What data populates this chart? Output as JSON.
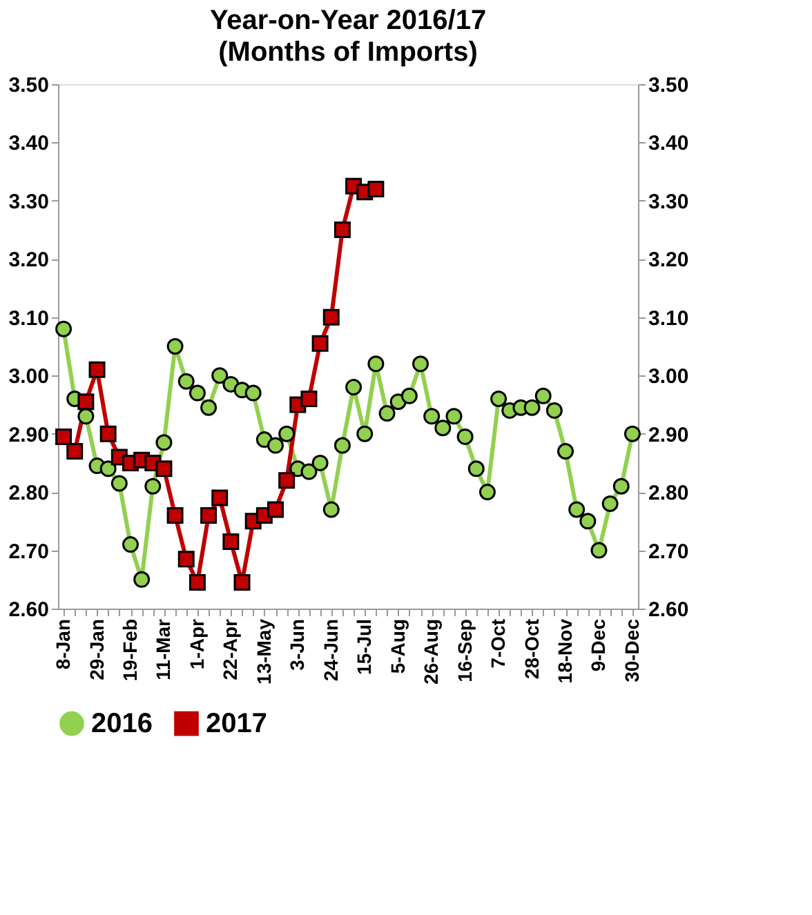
{
  "chart_data": {
    "type": "line",
    "title": "Year-on-Year 2016/17",
    "subtitle": "(Months of Imports)",
    "categories": [
      "8-Jan",
      null,
      null,
      "29-Jan",
      null,
      null,
      "19-Feb",
      null,
      null,
      "11-Mar",
      null,
      null,
      "1-Apr",
      null,
      null,
      "22-Apr",
      null,
      null,
      "13-May",
      null,
      null,
      "3-Jun",
      null,
      null,
      "24-Jun",
      null,
      null,
      "15-Jul",
      null,
      null,
      "5-Aug",
      null,
      null,
      "26-Aug",
      null,
      null,
      "16-Sep",
      null,
      null,
      "7-Oct",
      null,
      null,
      "28-Oct",
      null,
      null,
      "18-Nov",
      null,
      null,
      "9-Dec",
      null,
      null,
      "30-Dec"
    ],
    "series": [
      {
        "name": "2016",
        "color": "#92d050",
        "marker": "circle",
        "values": [
          3.08,
          2.96,
          2.93,
          2.845,
          2.84,
          2.815,
          2.71,
          2.65,
          2.81,
          2.885,
          3.05,
          2.99,
          2.97,
          2.945,
          3.0,
          2.985,
          2.975,
          2.97,
          2.89,
          2.88,
          2.9,
          2.84,
          2.835,
          2.85,
          2.77,
          2.88,
          2.98,
          2.9,
          3.02,
          2.935,
          2.955,
          2.965,
          3.02,
          2.93,
          2.91,
          2.93,
          2.895,
          2.84,
          2.8,
          2.96,
          2.94,
          2.945,
          2.945,
          2.965,
          2.94,
          2.87,
          2.77,
          2.75,
          2.7,
          2.78,
          2.81,
          2.9
        ]
      },
      {
        "name": "2017",
        "color": "#c00000",
        "marker": "square",
        "values": [
          2.895,
          2.87,
          2.955,
          3.01,
          2.9,
          2.86,
          2.85,
          2.855,
          2.85,
          2.84,
          2.76,
          2.685,
          2.645,
          2.76,
          2.79,
          2.715,
          2.645,
          2.75,
          2.76,
          2.77,
          2.82,
          2.95,
          2.96,
          3.055,
          3.1,
          3.25,
          3.325,
          3.315,
          3.32,
          null,
          null,
          null,
          null,
          null,
          null,
          null,
          null,
          null,
          null,
          null,
          null,
          null,
          null,
          null,
          null,
          null,
          null,
          null,
          null,
          null,
          null,
          null
        ]
      }
    ],
    "ylim": [
      2.6,
      3.5
    ],
    "yticks": [
      {
        "value": 2.6,
        "label": "2.60"
      },
      {
        "value": 2.7,
        "label": "2.70"
      },
      {
        "value": 2.8,
        "label": "2.80"
      },
      {
        "value": 2.9,
        "label": "2.90"
      },
      {
        "value": 3.0,
        "label": "3.00"
      },
      {
        "value": 3.1,
        "label": "3.10"
      },
      {
        "value": 3.2,
        "label": "3.20"
      },
      {
        "value": 3.3,
        "label": "3.30"
      },
      {
        "value": 3.4,
        "label": "3.40"
      },
      {
        "value": 3.5,
        "label": "3.50"
      }
    ],
    "y2lim": [
      2.6,
      3.5
    ],
    "y2ticks": [
      {
        "value": 2.6,
        "label": "2.60"
      },
      {
        "value": 2.7,
        "label": "2.70"
      },
      {
        "value": 2.8,
        "label": "2.80"
      },
      {
        "value": 2.9,
        "label": "2.90"
      },
      {
        "value": 3.0,
        "label": "3.00"
      },
      {
        "value": 3.1,
        "label": "3.10"
      },
      {
        "value": 3.2,
        "label": "3.20"
      },
      {
        "value": 3.3,
        "label": "3.30"
      },
      {
        "value": 3.4,
        "label": "3.40"
      },
      {
        "value": 3.5,
        "label": "3.50"
      }
    ],
    "grid": false,
    "legend": "bottom",
    "line_style": "solid"
  }
}
